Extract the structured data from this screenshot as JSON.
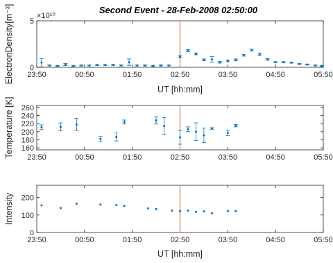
{
  "figure_title": "Second Event - 28-Feb-2008 02:50:00",
  "colors": {
    "data": "#0072BD",
    "event_line": "#D95319",
    "axis": "#262626"
  },
  "chart_data": [
    {
      "type": "scatter",
      "ylabel": "ElectronDensity[m⁻³]",
      "xlabel": "UT [hh:mm]",
      "y_exponent_label": "×10¹⁰",
      "xlim": [
        "23:50",
        "05:50"
      ],
      "xticks": [
        "23:50",
        "00:50",
        "01:50",
        "02:50",
        "03:50",
        "04:50",
        "05:50"
      ],
      "ylim": [
        0,
        5
      ],
      "yticks": [
        "0",
        "5"
      ],
      "event_time": "02:50",
      "series": [
        {
          "points": [
            {
              "t": "23:56",
              "y": 0.5,
              "err": 0.45
            },
            {
              "t": "24:06",
              "y": 0.2,
              "err": 0.05
            },
            {
              "t": "24:16",
              "y": 0.15,
              "err": 0.05
            },
            {
              "t": "24:26",
              "y": 0.3,
              "err": 0.12
            },
            {
              "t": "24:36",
              "y": 0.15,
              "err": 0.05
            },
            {
              "t": "24:46",
              "y": 0.2,
              "err": 0.05
            },
            {
              "t": "24:56",
              "y": 0.2,
              "err": 0.05
            },
            {
              "t": "25:06",
              "y": 0.25,
              "err": 0.05
            },
            {
              "t": "25:16",
              "y": 0.25,
              "err": 0.05
            },
            {
              "t": "25:26",
              "y": 0.25,
              "err": 0.05
            },
            {
              "t": "25:36",
              "y": 0.2,
              "err": 0.05
            },
            {
              "t": "25:46",
              "y": 0.55,
              "err": 0.35
            },
            {
              "t": "25:56",
              "y": 0.2,
              "err": 0.05
            },
            {
              "t": "26:06",
              "y": 0.2,
              "err": 0.05
            },
            {
              "t": "26:16",
              "y": 0.15,
              "err": 0.05
            },
            {
              "t": "26:26",
              "y": 0.2,
              "err": 0.05
            },
            {
              "t": "26:36",
              "y": 0.2,
              "err": 0.05
            },
            {
              "t": "26:50",
              "y": 1.15,
              "err": 0.1
            },
            {
              "t": "27:00",
              "y": 1.8,
              "err": 0.1
            },
            {
              "t": "27:10",
              "y": 1.45,
              "err": 0.1
            },
            {
              "t": "27:20",
              "y": 0.8,
              "err": 0.1
            },
            {
              "t": "27:30",
              "y": 0.85,
              "err": 0.3
            },
            {
              "t": "27:40",
              "y": 0.55,
              "err": 0.1
            },
            {
              "t": "27:50",
              "y": 0.7,
              "err": 0.1
            },
            {
              "t": "28:00",
              "y": 0.8,
              "err": 0.1
            },
            {
              "t": "28:10",
              "y": 1.3,
              "err": 0.1
            },
            {
              "t": "28:20",
              "y": 1.85,
              "err": 0.1
            },
            {
              "t": "28:30",
              "y": 1.4,
              "err": 0.12
            },
            {
              "t": "28:40",
              "y": 0.85,
              "err": 0.1
            },
            {
              "t": "28:50",
              "y": 0.55,
              "err": 0.05
            },
            {
              "t": "29:00",
              "y": 0.55,
              "err": 0.05
            },
            {
              "t": "29:10",
              "y": 0.5,
              "err": 0.05
            },
            {
              "t": "29:20",
              "y": 0.35,
              "err": 0.05
            },
            {
              "t": "29:30",
              "y": 0.3,
              "err": 0.05
            },
            {
              "t": "29:40",
              "y": 0.2,
              "err": 0.05
            },
            {
              "t": "29:48",
              "y": 0.15,
              "err": 0.05
            }
          ]
        }
      ]
    },
    {
      "type": "scatter",
      "ylabel": "Temperature [K]",
      "xlabel": "",
      "xlim": [
        "23:50",
        "05:50"
      ],
      "xticks": [
        "23:50",
        "00:50",
        "01:50",
        "02:50",
        "03:50",
        "04:50",
        "05:50"
      ],
      "ylim": [
        155,
        265
      ],
      "yticks": [
        "160",
        "180",
        "200",
        "220",
        "240",
        "260"
      ],
      "event_time": "02:50",
      "series": [
        {
          "points": [
            {
              "t": "23:56",
              "y": 211,
              "err": 6
            },
            {
              "t": "24:20",
              "y": 212,
              "err": 10
            },
            {
              "t": "24:40",
              "y": 218,
              "err": 15
            },
            {
              "t": "25:10",
              "y": 182,
              "err": 6
            },
            {
              "t": "25:30",
              "y": 187,
              "err": 10
            },
            {
              "t": "25:40",
              "y": 224,
              "err": 5
            },
            {
              "t": "26:20",
              "y": 228,
              "err": 9
            },
            {
              "t": "26:30",
              "y": 214,
              "err": 21
            },
            {
              "t": "26:50",
              "y": 186,
              "err": 17
            },
            {
              "t": "27:00",
              "y": 206,
              "err": 6
            },
            {
              "t": "27:10",
              "y": 200,
              "err": 22
            },
            {
              "t": "27:20",
              "y": 191,
              "err": 18
            },
            {
              "t": "27:30",
              "y": 208,
              "err": 2
            },
            {
              "t": "27:50",
              "y": 197,
              "err": 7
            },
            {
              "t": "28:00",
              "y": 215,
              "err": 3
            }
          ]
        }
      ]
    },
    {
      "type": "scatter",
      "ylabel": "Intensity",
      "xlabel": "UT [hh:mm]",
      "xlim": [
        "23:50",
        "05:50"
      ],
      "xticks": [
        "23:50",
        "00:50",
        "01:50",
        "02:50",
        "03:50",
        "04:50",
        "05:50"
      ],
      "ylim": [
        0,
        270
      ],
      "yticks": [
        "0",
        "100",
        "200"
      ],
      "event_time": "02:50",
      "series": [
        {
          "points": [
            {
              "t": "23:56",
              "y": 155
            },
            {
              "t": "24:20",
              "y": 140
            },
            {
              "t": "24:40",
              "y": 165
            },
            {
              "t": "25:10",
              "y": 160
            },
            {
              "t": "25:30",
              "y": 157
            },
            {
              "t": "25:40",
              "y": 152
            },
            {
              "t": "26:10",
              "y": 138
            },
            {
              "t": "26:20",
              "y": 134
            },
            {
              "t": "26:40",
              "y": 125
            },
            {
              "t": "26:50",
              "y": 122
            },
            {
              "t": "27:00",
              "y": 125
            },
            {
              "t": "27:10",
              "y": 118
            },
            {
              "t": "27:20",
              "y": 120
            },
            {
              "t": "27:30",
              "y": 110
            },
            {
              "t": "27:50",
              "y": 123
            },
            {
              "t": "28:00",
              "y": 122
            }
          ]
        }
      ]
    }
  ]
}
